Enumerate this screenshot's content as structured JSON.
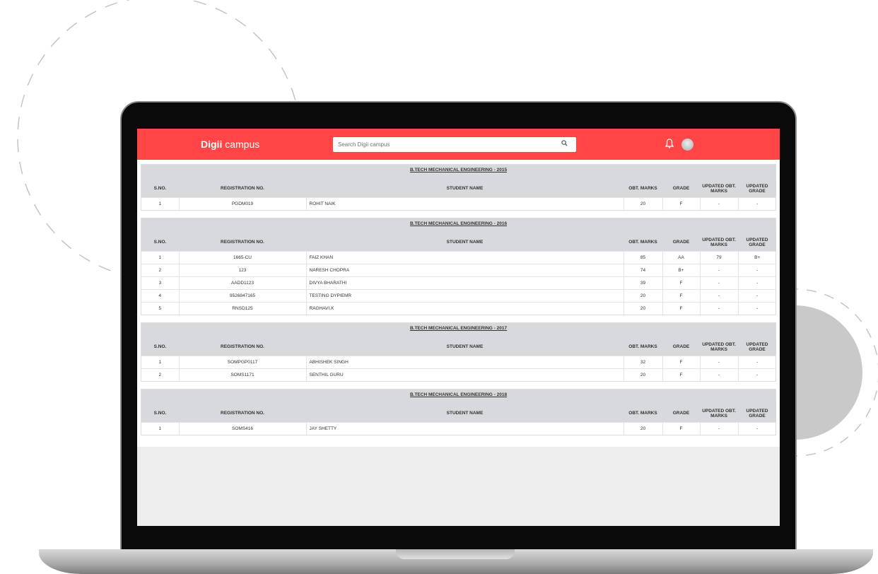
{
  "header": {
    "logo_bold": "Digii",
    "logo_light": "campus",
    "search_placeholder": "Search Digii campus"
  },
  "columns": [
    "S.NO.",
    "REGISTRATION NO.",
    "STUDENT NAME",
    "OBT. MARKS",
    "GRADE",
    "UPDATED OBT. MARKS",
    "UPDATED GRADE"
  ],
  "colors": {
    "header": "#ff4545",
    "table_header": "#d8d9dd"
  },
  "sections": [
    {
      "title": "B.TECH MECHANICAL ENGINEERING - 2015",
      "rows": [
        [
          "1",
          "PGDM019",
          "ROHIT NAIK",
          "20",
          "F",
          "-",
          "-"
        ]
      ]
    },
    {
      "title": "B.TECH MECHANICAL ENGINEERING - 2016",
      "rows": [
        [
          "1",
          "1665-CU",
          "FAIZ KHAN",
          "85",
          "AA",
          "79",
          "B+"
        ],
        [
          "2",
          "123",
          "NARESH CHOPRA",
          "74",
          "B+",
          "-",
          "-"
        ],
        [
          "3",
          "AADD1123",
          "DIVYA BHARATHI",
          "39",
          "F",
          "-",
          "-"
        ],
        [
          "4",
          "9526847165",
          "TESTING DYPIEMR",
          "20",
          "F",
          "-",
          "-"
        ],
        [
          "5",
          "RNSD125",
          "RAGHAVI.K",
          "20",
          "F",
          "-",
          "-"
        ]
      ]
    },
    {
      "title": "B.TECH MECHANICAL ENGINEERING - 2017",
      "rows": [
        [
          "1",
          "SOMPGP0117",
          "ABHISHEK SINGH",
          "32",
          "F",
          "-",
          "-"
        ],
        [
          "2",
          "SOMS1171",
          "SENTHIL GURU",
          "20",
          "F",
          "-",
          "-"
        ]
      ]
    },
    {
      "title": "B.TECH MECHANICAL ENGINEERING - 2018",
      "rows": [
        [
          "1",
          "SOMS416",
          "JAY SHETTY",
          "20",
          "F",
          "-",
          "-"
        ]
      ]
    }
  ]
}
